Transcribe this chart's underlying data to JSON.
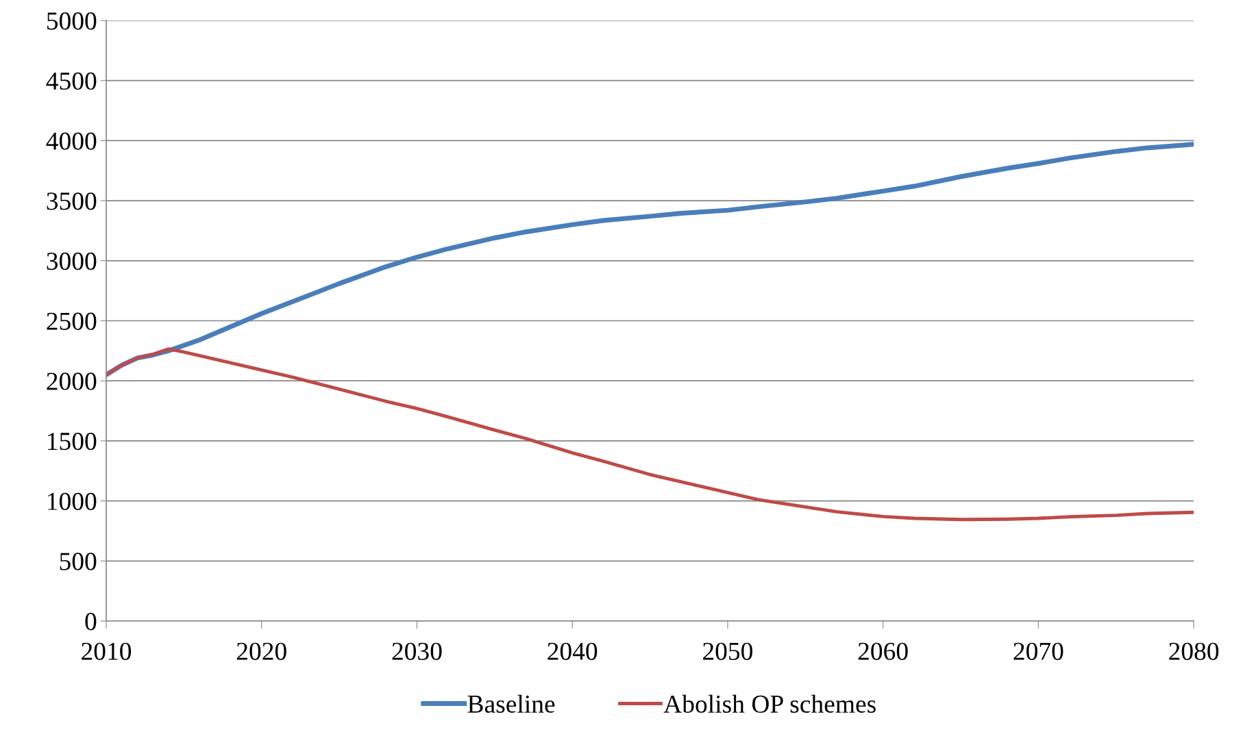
{
  "chart_data": {
    "type": "line",
    "xlim": [
      2010,
      2080
    ],
    "xticks": [
      2010,
      2020,
      2030,
      2040,
      2050,
      2060,
      2070,
      2080
    ],
    "ylim": [
      0,
      5000
    ],
    "yticks": [
      0,
      500,
      1000,
      1500,
      2000,
      2500,
      3000,
      3500,
      4000,
      4500,
      5000
    ],
    "grid": "y",
    "legend": "bottom",
    "line_style": "solid",
    "marker": "none",
    "series": [
      {
        "name": "Baseline",
        "color": "#4a7ebb",
        "x": [
          2010,
          2011,
          2012,
          2013,
          2014,
          2016,
          2018,
          2020,
          2022,
          2025,
          2028,
          2030,
          2032,
          2035,
          2037,
          2040,
          2042,
          2045,
          2047,
          2050,
          2052,
          2055,
          2057,
          2060,
          2062,
          2065,
          2068,
          2070,
          2072,
          2075,
          2077,
          2080
        ],
        "values": [
          2050,
          2130,
          2190,
          2215,
          2250,
          2340,
          2450,
          2560,
          2660,
          2810,
          2950,
          3030,
          3100,
          3190,
          3240,
          3300,
          3335,
          3370,
          3395,
          3420,
          3450,
          3490,
          3520,
          3580,
          3620,
          3700,
          3770,
          3810,
          3855,
          3910,
          3940,
          3970
        ]
      },
      {
        "name": "Abolish OP schemes",
        "color": "#be4b48",
        "x": [
          2010,
          2011,
          2012,
          2013,
          2014,
          2015,
          2018,
          2020,
          2022,
          2025,
          2028,
          2030,
          2032,
          2035,
          2037,
          2040,
          2042,
          2045,
          2047,
          2050,
          2052,
          2055,
          2057,
          2060,
          2062,
          2065,
          2068,
          2070,
          2072,
          2075,
          2077,
          2080
        ],
        "values": [
          2050,
          2130,
          2190,
          2220,
          2265,
          2240,
          2150,
          2090,
          2030,
          1930,
          1830,
          1770,
          1700,
          1590,
          1520,
          1400,
          1330,
          1220,
          1160,
          1070,
          1010,
          950,
          910,
          870,
          855,
          845,
          848,
          855,
          868,
          880,
          895,
          905
        ]
      }
    ]
  }
}
